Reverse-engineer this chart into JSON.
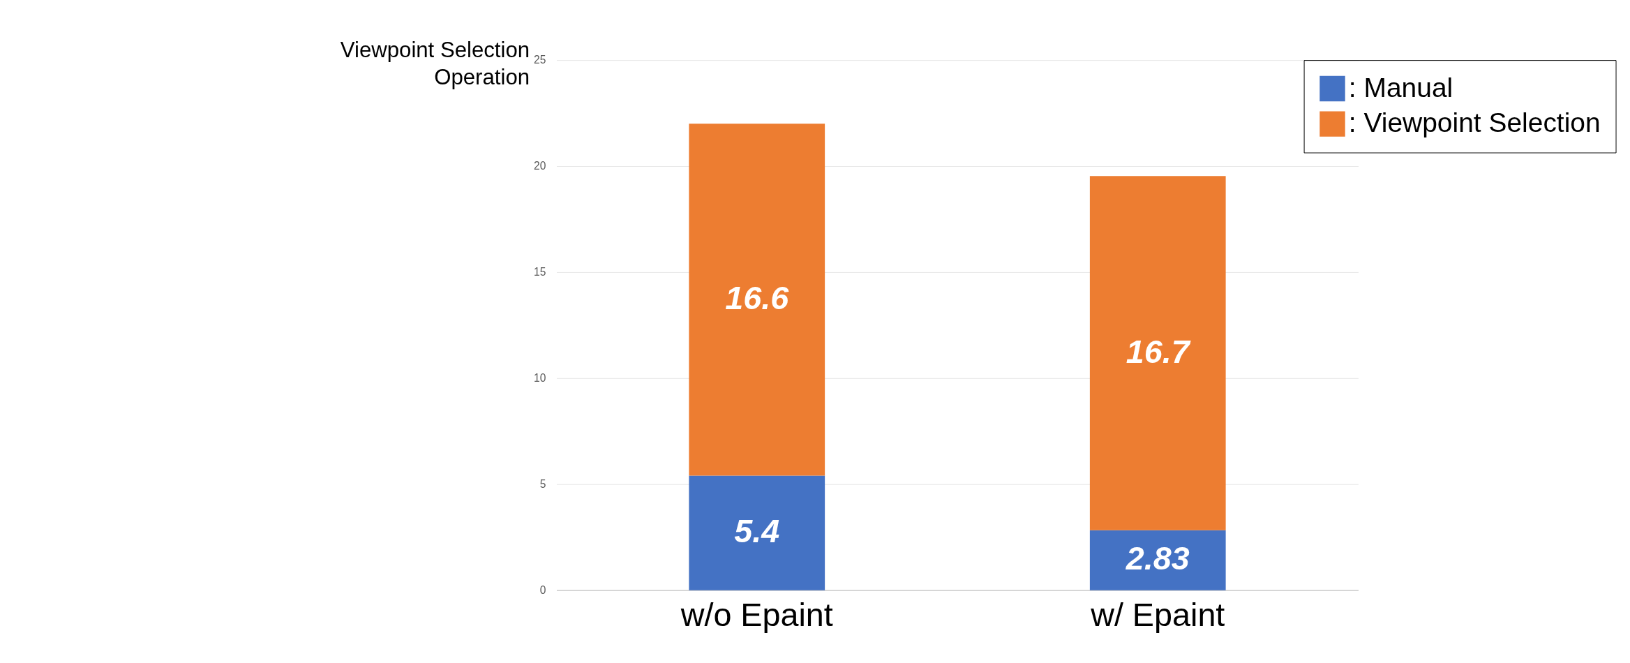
{
  "chart_data": {
    "type": "bar",
    "stacked": true,
    "ylabel": "Viewpoint Selection\nOperation",
    "categories": [
      "w/o Epaint",
      "w/ Epaint"
    ],
    "series": [
      {
        "name": ": Manual",
        "color": "#4472c4",
        "values": [
          5.4,
          2.83
        ]
      },
      {
        "name": ": Viewpoint Selection",
        "color": "#ed7d31",
        "values": [
          16.6,
          16.7
        ]
      }
    ],
    "ylim": [
      0,
      25
    ],
    "yticks": [
      0,
      5,
      10,
      15,
      20,
      25
    ],
    "grid": "y",
    "legend": "top right",
    "data_labels": true
  }
}
